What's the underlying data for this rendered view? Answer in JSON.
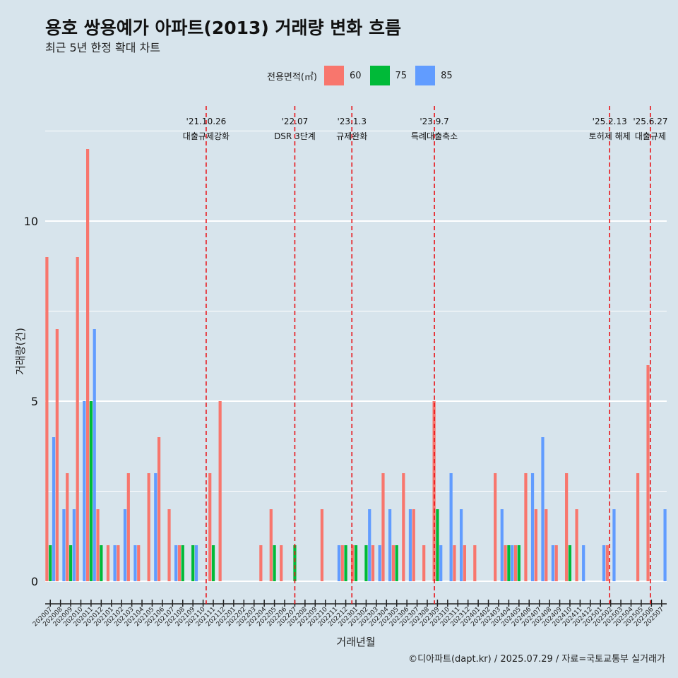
{
  "header": {
    "title": "용호 쌍용예가 아파트(2013) 거래량 변화 흐름",
    "subtitle": "최근 5년 한정 확대 차트"
  },
  "caption": "©디아파트(dapt.kr) / 2025.07.29 / 자료=국토교통부 실거래가",
  "colors": {
    "60": "#f8766d",
    "75": "#00ba38",
    "85": "#619cff",
    "vline": "#e8151b",
    "background": "#d7e4ec"
  },
  "chart_data": {
    "type": "bar",
    "title": "용호 쌍용예가 아파트(2013) 거래량 변화 흐름",
    "subtitle": "최근 5년 한정 확대 차트",
    "xlabel": "거래년월",
    "ylabel": "거래량(건)",
    "ylim": [
      0,
      12.5
    ],
    "yticks": [
      0,
      5,
      10
    ],
    "grid": true,
    "legend_title": "전용면적(㎡)",
    "legend_position": "top",
    "categories": [
      "202007",
      "202008",
      "202009",
      "202010",
      "202011",
      "202012",
      "202101",
      "202102",
      "202103",
      "202104",
      "202105",
      "202106",
      "202107",
      "202108",
      "202109",
      "202110",
      "202111",
      "202112",
      "202201",
      "202202",
      "202203",
      "202204",
      "202205",
      "202206",
      "202207",
      "202208",
      "202209",
      "202210",
      "202211",
      "202212",
      "202301",
      "202302",
      "202303",
      "202304",
      "202305",
      "202306",
      "202307",
      "202308",
      "202309",
      "202310",
      "202311",
      "202312",
      "202401",
      "202402",
      "202403",
      "202404",
      "202405",
      "202406",
      "202407",
      "202408",
      "202409",
      "202410",
      "202411",
      "202412",
      "202501",
      "202502",
      "202503",
      "202504",
      "202505",
      "202506",
      "202507"
    ],
    "series": [
      {
        "name": "60",
        "values": [
          9,
          7,
          3,
          9,
          12,
          2,
          1,
          1,
          3,
          1,
          3,
          4,
          2,
          1,
          0,
          0,
          3,
          5,
          0,
          0,
          0,
          1,
          2,
          1,
          0,
          0,
          0,
          2,
          0,
          1,
          1,
          0,
          1,
          3,
          1,
          3,
          2,
          1,
          5,
          0,
          1,
          1,
          1,
          0,
          3,
          1,
          1,
          3,
          2,
          2,
          1,
          3,
          2,
          0,
          0,
          1,
          0,
          0,
          3,
          6,
          0
        ]
      },
      {
        "name": "75",
        "values": [
          1,
          0,
          1,
          0,
          5,
          1,
          0,
          0,
          0,
          0,
          0,
          0,
          0,
          1,
          1,
          0,
          1,
          0,
          0,
          0,
          0,
          0,
          1,
          0,
          1,
          0,
          0,
          0,
          0,
          1,
          1,
          1,
          0,
          0,
          1,
          0,
          0,
          0,
          2,
          0,
          0,
          0,
          0,
          0,
          0,
          1,
          1,
          0,
          0,
          0,
          0,
          1,
          0,
          0,
          0,
          0,
          0,
          0,
          0,
          0,
          0
        ]
      },
      {
        "name": "85",
        "values": [
          4,
          2,
          2,
          5,
          7,
          0,
          1,
          2,
          1,
          0,
          3,
          0,
          1,
          0,
          1,
          0,
          0,
          0,
          0,
          0,
          0,
          0,
          0,
          0,
          0,
          0,
          0,
          0,
          1,
          0,
          0,
          2,
          1,
          2,
          0,
          2,
          0,
          0,
          1,
          3,
          2,
          0,
          0,
          0,
          2,
          1,
          0,
          3,
          4,
          1,
          0,
          0,
          1,
          0,
          1,
          2,
          0,
          0,
          0,
          0,
          2
        ]
      }
    ],
    "events": [
      {
        "date": "'21.10.26",
        "label": "대출규제강화",
        "index": 15.8
      },
      {
        "date": "'22.07",
        "label": "DSR 3단계",
        "index": 24.5
      },
      {
        "date": "'23.1.3",
        "label": "규제완화",
        "index": 30.1
      },
      {
        "date": "'23.9.7",
        "label": "특례대출축소",
        "index": 38.2
      },
      {
        "date": "'25.2.13",
        "label": "토허제 해제",
        "index": 55.4
      },
      {
        "date": "'25.6.27",
        "label": "대출규제",
        "index": 59.4
      }
    ]
  }
}
